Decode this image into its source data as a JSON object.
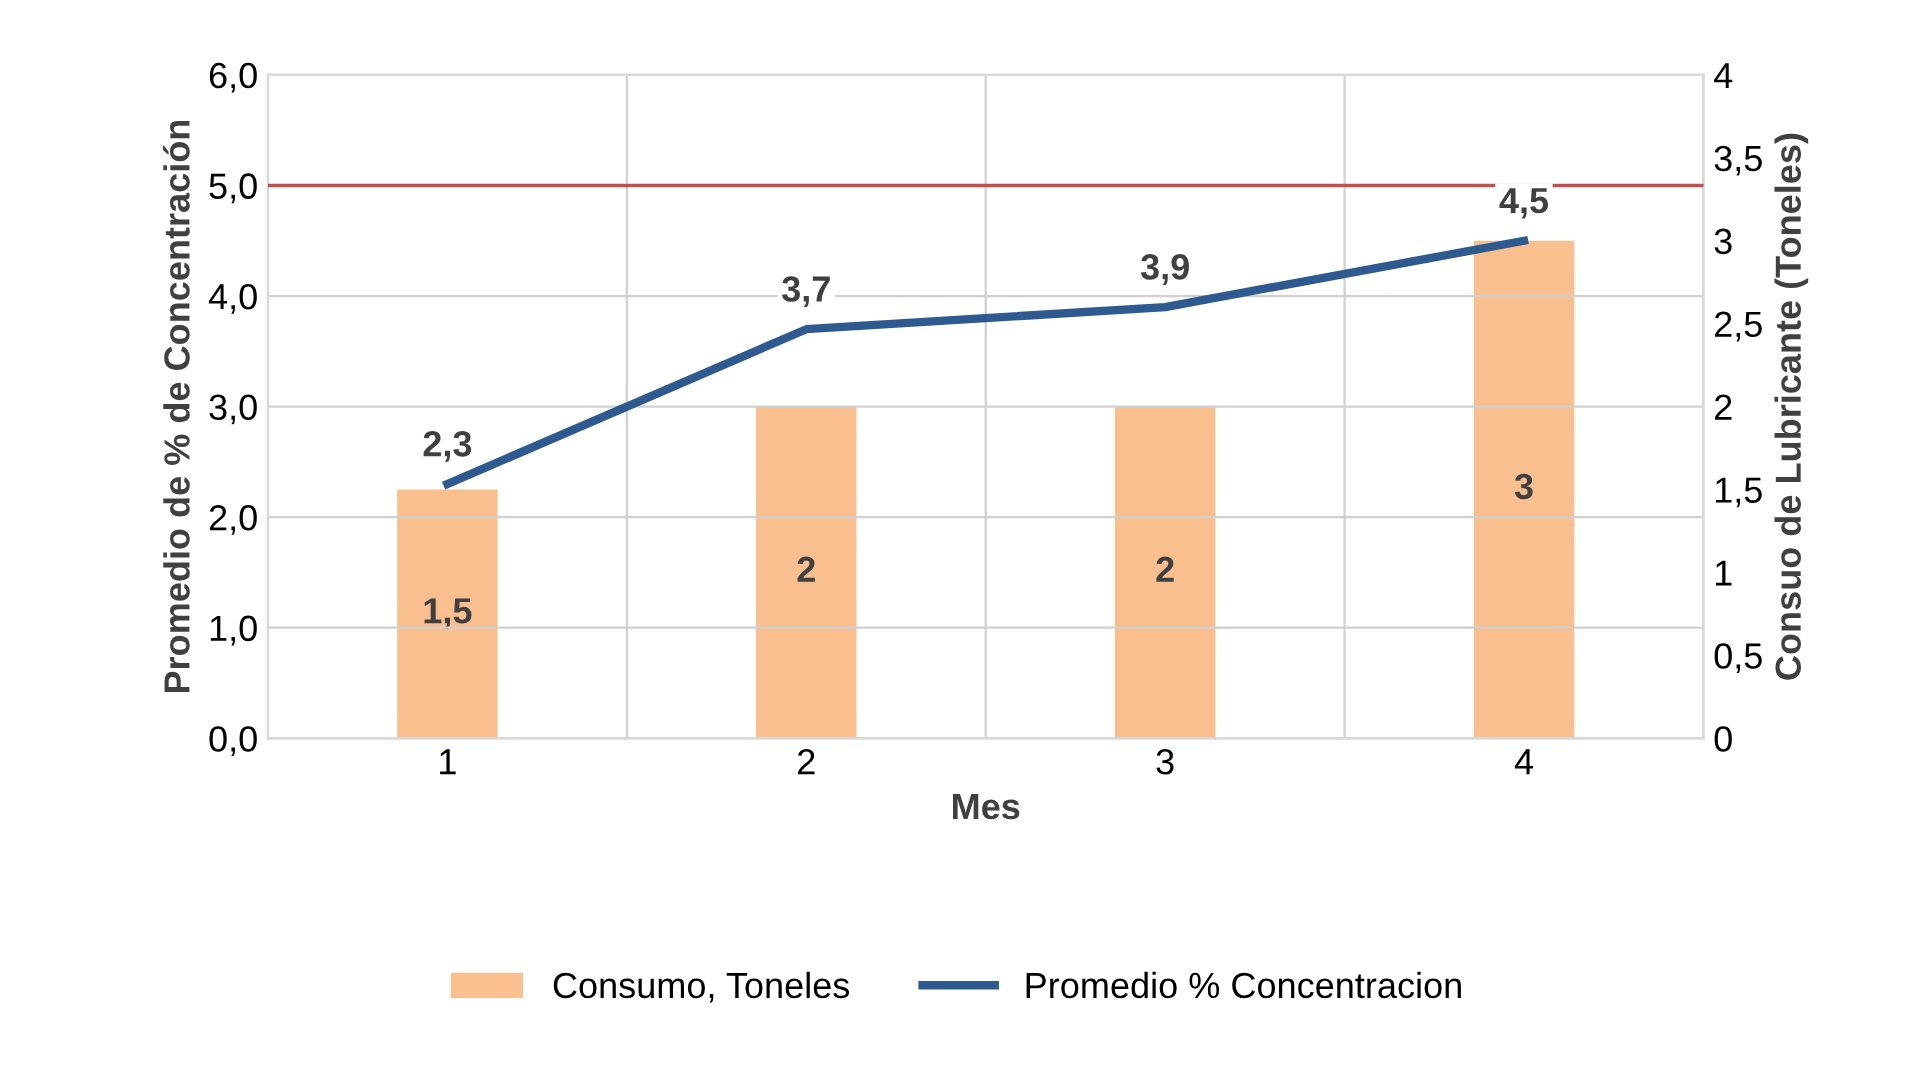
{
  "chart_data": {
    "type": "bar",
    "xlabel": "Mes",
    "ylabel": "Promedio de % de Concentración",
    "y2label": "Consuo de Lubricante (Toneles)",
    "categories": [
      "1",
      "2",
      "3",
      "4"
    ],
    "series": [
      {
        "name": "Consumo, Toneles",
        "axis": "y2",
        "color": "#f9bf8f",
        "values": [
          1.5,
          2,
          2,
          3
        ],
        "value_labels": [
          "1,5",
          "2",
          "2",
          "3"
        ]
      },
      {
        "name": "Promedio % Concentracion",
        "type": "line",
        "axis": "y",
        "color": "#2e5a8f",
        "values": [
          2.3,
          3.7,
          3.9,
          4.5
        ],
        "value_labels": [
          "2,3",
          "3,7",
          "3,9",
          "4,5"
        ]
      }
    ],
    "ylim": [
      0,
      6
    ],
    "yticks": [
      {
        "value": 0,
        "label": "0,0"
      },
      {
        "value": 1,
        "label": "1,0"
      },
      {
        "value": 2,
        "label": "2,0"
      },
      {
        "value": 3,
        "label": "3,0"
      },
      {
        "value": 4,
        "label": "4,0"
      },
      {
        "value": 5,
        "label": "5,0"
      },
      {
        "value": 6,
        "label": "6,0"
      }
    ],
    "y2lim": [
      0,
      4
    ],
    "y2ticks": [
      0,
      {
        "value": 0.5,
        "label": "0,5"
      },
      1,
      {
        "value": 1.5,
        "label": "1,5"
      },
      2,
      {
        "value": 2.5,
        "label": "2,5"
      },
      3,
      {
        "value": 3.5,
        "label": "3,5"
      },
      4
    ],
    "ref_lines": [
      {
        "axis": "y",
        "value": 5,
        "color": "#c0504d"
      }
    ],
    "grid": true,
    "legend": "bottom",
    "marker": "none",
    "line_style": "solid"
  }
}
